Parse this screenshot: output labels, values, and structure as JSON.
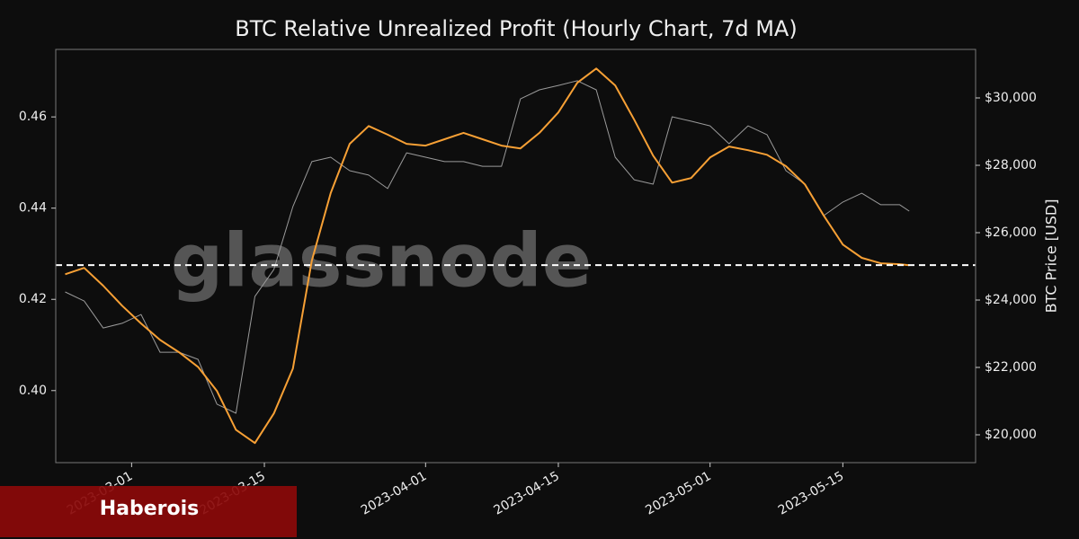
{
  "chart_data": {
    "type": "line",
    "title": "BTC Relative Unrealized Profit (Hourly Chart, 7d MA)",
    "y2label": "BTC Price [USD]",
    "watermark": "glassnode",
    "badge": "Haberois",
    "x": [
      "2023-02-22",
      "2023-02-24",
      "2023-02-26",
      "2023-02-28",
      "2023-03-02",
      "2023-03-04",
      "2023-03-06",
      "2023-03-08",
      "2023-03-10",
      "2023-03-12",
      "2023-03-14",
      "2023-03-16",
      "2023-03-18",
      "2023-03-20",
      "2023-03-22",
      "2023-03-24",
      "2023-03-26",
      "2023-03-28",
      "2023-03-30",
      "2023-04-01",
      "2023-04-03",
      "2023-04-05",
      "2023-04-07",
      "2023-04-09",
      "2023-04-11",
      "2023-04-13",
      "2023-04-15",
      "2023-04-17",
      "2023-04-19",
      "2023-04-21",
      "2023-04-23",
      "2023-04-25",
      "2023-04-27",
      "2023-04-29",
      "2023-05-01",
      "2023-05-03",
      "2023-05-05",
      "2023-05-07",
      "2023-05-09",
      "2023-05-11",
      "2023-05-13",
      "2023-05-15",
      "2023-05-17",
      "2023-05-19",
      "2023-05-21",
      "2023-05-22"
    ],
    "series": [
      {
        "name": "Relative Unrealized Profit (7d MA)",
        "color": "#f7a035",
        "axis": "y",
        "values": [
          0.4255,
          0.4269,
          0.423,
          0.4186,
          0.4147,
          0.4111,
          0.4084,
          0.4052,
          0.3999,
          0.3914,
          0.3885,
          0.395,
          0.4048,
          0.4285,
          0.4433,
          0.4541,
          0.458,
          0.4561,
          0.4541,
          0.4537,
          0.4551,
          0.4565,
          0.4551,
          0.4537,
          0.4531,
          0.4565,
          0.461,
          0.4675,
          0.4706,
          0.4669,
          0.4594,
          0.4515,
          0.4456,
          0.4466,
          0.4511,
          0.4535,
          0.4527,
          0.4517,
          0.4492,
          0.4452,
          0.4383,
          0.432,
          0.4291,
          0.4279,
          0.4277,
          0.4275
        ]
      },
      {
        "name": "BTC Price",
        "color": "#9a9a9a",
        "axis": "y2",
        "values": [
          24240,
          23970,
          23170,
          23310,
          23570,
          22450,
          22450,
          22240,
          20910,
          20640,
          24110,
          24910,
          26770,
          28110,
          28240,
          27840,
          27710,
          27310,
          28370,
          28240,
          28110,
          28110,
          27970,
          27970,
          29970,
          30240,
          30370,
          30510,
          30240,
          28240,
          27570,
          27440,
          29440,
          29310,
          29170,
          28640,
          29170,
          28910,
          27840,
          27440,
          26510,
          26910,
          27170,
          26830,
          26830,
          26640
        ]
      }
    ],
    "hline": 0.4275,
    "xlim": [
      "2023-02-21",
      "2023-05-29"
    ],
    "xticks": [
      "2023-03-01",
      "2023-03-15",
      "2023-04-01",
      "2023-04-15",
      "2023-05-01",
      "2023-05-15"
    ],
    "ylim": [
      0.3842,
      0.4748
    ],
    "yticks": [
      {
        "value": 0.4,
        "label": "0.40"
      },
      0.42,
      0.44,
      0.46
    ],
    "y2lim": [
      19173,
      31440
    ],
    "y2ticks": [
      {
        "value": 20000,
        "label": "$20,000"
      },
      {
        "value": 22000,
        "label": "$22,000"
      },
      {
        "value": 24000,
        "label": "$24,000"
      },
      {
        "value": 26000,
        "label": "$26,000"
      },
      {
        "value": 28000,
        "label": "$28,000"
      },
      {
        "value": 30000,
        "label": "$30,000"
      }
    ]
  }
}
